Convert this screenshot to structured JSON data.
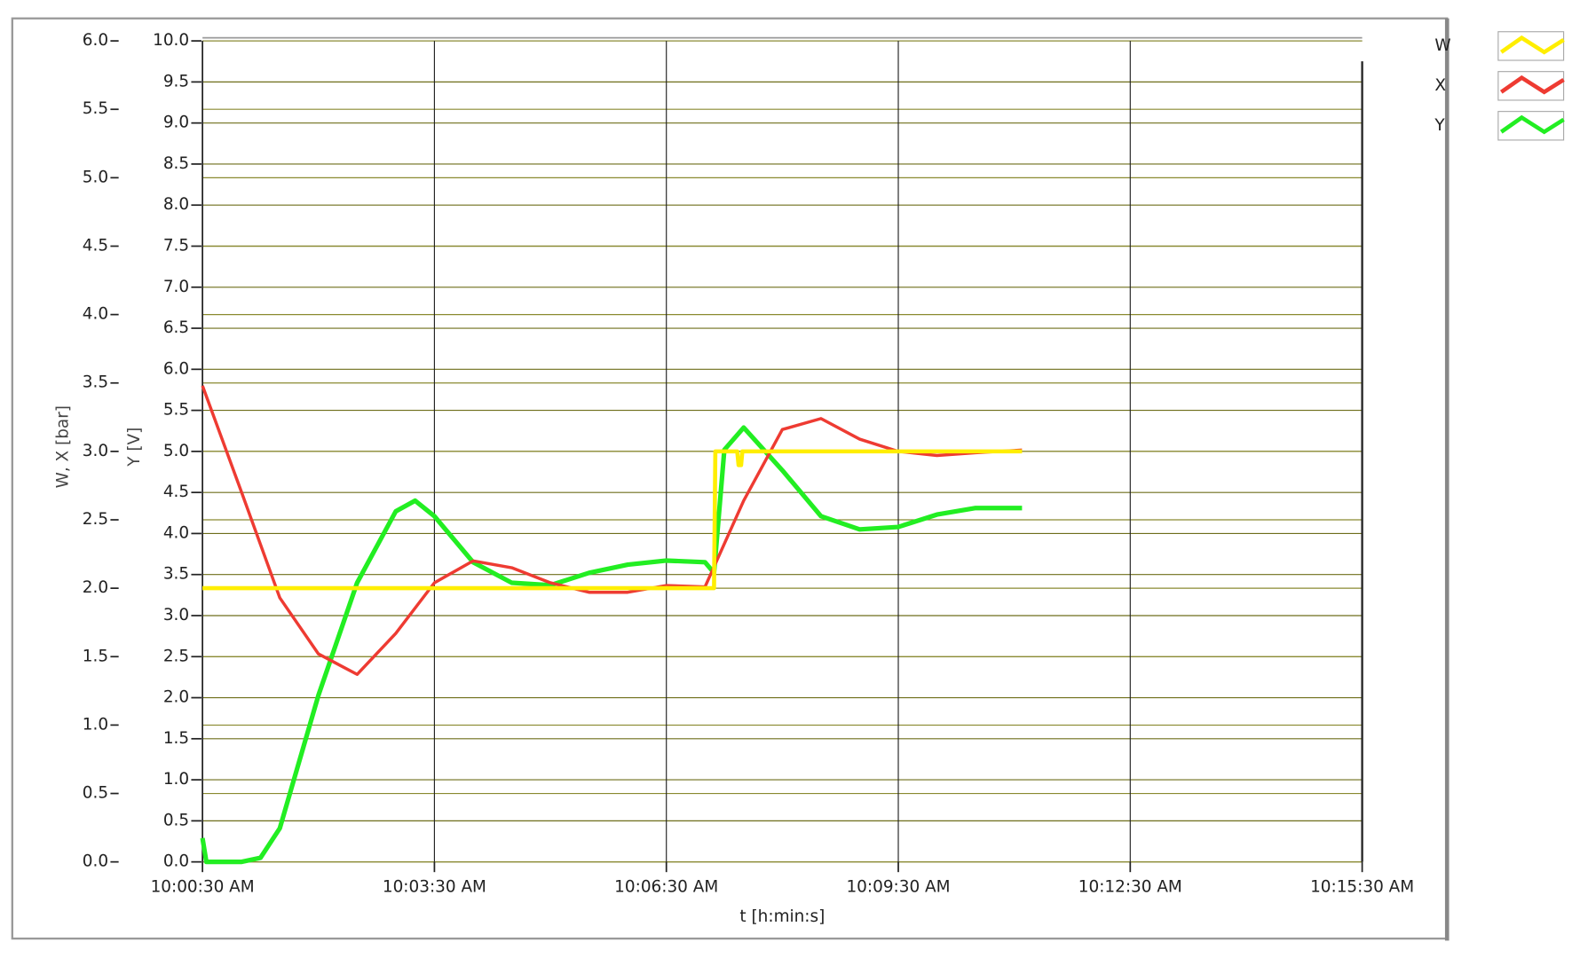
{
  "chart_data": {
    "type": "line",
    "xlabel": "t [h:min:s]",
    "ylabel": "W, X [bar]",
    "y2label": "Y [V]",
    "xlim": [
      "10:00:30 AM",
      "10:15:30 AM"
    ],
    "xticks": [
      "10:00:30 AM",
      "10:03:30 AM",
      "10:06:30 AM",
      "10:09:30 AM",
      "10:12:30 AM",
      "10:15:30 AM"
    ],
    "ylim": [
      0,
      6
    ],
    "yticks": [
      {
        "value": 0,
        "label": "0.0"
      },
      0.5,
      {
        "value": 1,
        "label": "1.0"
      },
      1.5,
      {
        "value": 2,
        "label": "2.0"
      },
      2.5,
      {
        "value": 3,
        "label": "3.0"
      },
      3.5,
      {
        "value": 4,
        "label": "4.0"
      },
      4.5,
      {
        "value": 5,
        "label": "5.0"
      },
      5.5,
      {
        "value": 6,
        "label": "6.0"
      }
    ],
    "y2lim": [
      0,
      10
    ],
    "y2ticks": [
      {
        "value": 0,
        "label": "0.0"
      },
      0.5,
      {
        "value": 1,
        "label": "1.0"
      },
      1.5,
      {
        "value": 2,
        "label": "2.0"
      },
      2.5,
      {
        "value": 3,
        "label": "3.0"
      },
      3.5,
      {
        "value": 4,
        "label": "4.0"
      },
      4.5,
      {
        "value": 5,
        "label": "5.0"
      },
      5.5,
      {
        "value": 6,
        "label": "6.0"
      },
      6.5,
      {
        "value": 7,
        "label": "7.0"
      },
      7.5,
      {
        "value": 8,
        "label": "8.0"
      },
      8.5,
      {
        "value": 9,
        "label": "9.0"
      },
      9.5,
      {
        "value": 10,
        "label": "10.0"
      }
    ],
    "grid": true,
    "legend": "top-right",
    "series": [
      {
        "name": "W",
        "color": "#ffee00",
        "x": [
          "10:00:30 AM",
          "10:07:07 AM",
          "10:07:08 AM",
          "10:07:25 AM",
          "10:07:26 AM",
          "10:07:28 AM",
          "10:07:29 AM",
          "10:11:06 AM"
        ],
        "values": [
          2.0,
          2.0,
          3.0,
          3.0,
          2.9,
          2.9,
          3.0,
          3.0
        ]
      },
      {
        "name": "X",
        "color": "#ee3b32",
        "x": [
          "10:00:30 AM",
          "10:01:00 AM",
          "10:01:30 AM",
          "10:02:00 AM",
          "10:02:30 AM",
          "10:03:00 AM",
          "10:03:30 AM",
          "10:04:00 AM",
          "10:04:30 AM",
          "10:05:00 AM",
          "10:05:30 AM",
          "10:06:00 AM",
          "10:06:30 AM",
          "10:07:00 AM",
          "10:07:30 AM",
          "10:08:00 AM",
          "10:08:30 AM",
          "10:09:00 AM",
          "10:09:30 AM",
          "10:10:00 AM",
          "10:10:30 AM",
          "10:11:06 AM"
        ],
        "values": [
          3.48,
          2.71,
          1.93,
          1.52,
          1.37,
          1.67,
          2.04,
          2.2,
          2.15,
          2.04,
          1.97,
          1.97,
          2.02,
          2.01,
          2.64,
          3.16,
          3.24,
          3.09,
          3.0,
          2.97,
          2.99,
          3.01
        ]
      },
      {
        "name": "Y",
        "color": "#22ee22",
        "axis": "y2",
        "x": [
          "10:00:30 AM",
          "10:00:33 AM",
          "10:01:00 AM",
          "10:01:15 AM",
          "10:01:30 AM",
          "10:02:00 AM",
          "10:02:30 AM",
          "10:03:00 AM",
          "10:03:15 AM",
          "10:03:30 AM",
          "10:04:00 AM",
          "10:04:30 AM",
          "10:05:00 AM",
          "10:05:30 AM",
          "10:06:00 AM",
          "10:06:30 AM",
          "10:07:00 AM",
          "10:07:07 AM",
          "10:07:15 AM",
          "10:07:30 AM",
          "10:08:00 AM",
          "10:08:30 AM",
          "10:09:00 AM",
          "10:09:30 AM",
          "10:10:00 AM",
          "10:10:30 AM",
          "10:11:06 AM"
        ],
        "values": [
          0.29,
          0,
          0,
          0.05,
          0.41,
          2.03,
          3.4,
          4.27,
          4.4,
          4.21,
          3.65,
          3.4,
          3.37,
          3.52,
          3.62,
          3.67,
          3.65,
          3.52,
          5.02,
          5.29,
          4.77,
          4.21,
          4.05,
          4.08,
          4.23,
          4.31,
          4.31
        ]
      }
    ]
  }
}
